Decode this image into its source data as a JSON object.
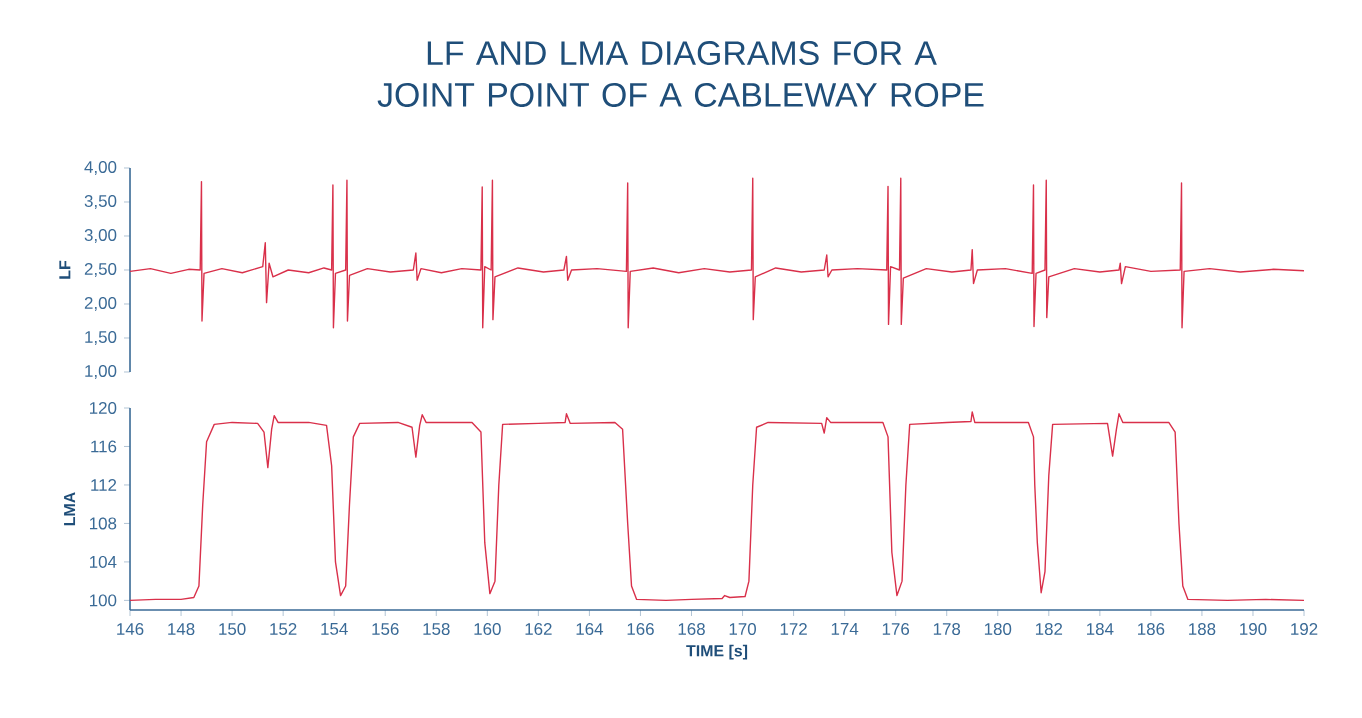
{
  "chart_data": [
    {
      "type": "line",
      "title": "LF AND LMA DIAGRAMS FOR A JOINT POINT OF A CABLEWAY ROPE",
      "ylabel": "LF",
      "color": "#d9304a",
      "tick_labels": "y",
      "xlim": [
        146,
        192
      ],
      "ylim": [
        1,
        4
      ],
      "yticks": [
        {
          "value": 1,
          "label": "1,00"
        },
        {
          "value": 1.5,
          "label": "1,50"
        },
        {
          "value": 2,
          "label": "2,00"
        },
        {
          "value": 2.5,
          "label": "2,50"
        },
        {
          "value": 3,
          "label": "3,00"
        },
        {
          "value": 3.5,
          "label": "3,50"
        },
        {
          "value": 4,
          "label": "4,00"
        }
      ],
      "x": [
        146.0,
        146.8,
        147.6,
        148.3,
        148.75,
        148.8,
        148.82,
        148.9,
        149.6,
        150.4,
        151.2,
        151.3,
        151.35,
        151.45,
        151.6,
        152.2,
        153.0,
        153.6,
        153.9,
        153.95,
        153.97,
        154.05,
        154.45,
        154.5,
        154.52,
        154.6,
        155.3,
        156.2,
        157.1,
        157.2,
        157.25,
        157.4,
        158.2,
        159.0,
        159.75,
        159.8,
        159.82,
        159.9,
        160.15,
        160.2,
        160.22,
        160.3,
        161.2,
        162.2,
        163.0,
        163.1,
        163.15,
        163.3,
        164.3,
        165.45,
        165.5,
        165.52,
        165.6,
        166.5,
        167.5,
        168.5,
        169.5,
        170.35,
        170.4,
        170.42,
        170.5,
        171.3,
        172.3,
        173.2,
        173.3,
        173.35,
        173.5,
        174.5,
        175.65,
        175.7,
        175.72,
        175.8,
        176.15,
        176.2,
        176.22,
        176.3,
        177.2,
        178.2,
        178.95,
        179.0,
        179.05,
        179.2,
        180.3,
        181.35,
        181.4,
        181.42,
        181.5,
        181.85,
        181.9,
        181.92,
        182.0,
        183.0,
        184.0,
        184.75,
        184.8,
        184.85,
        185.0,
        186.0,
        187.15,
        187.2,
        187.22,
        187.3,
        188.3,
        189.5,
        190.8,
        192.0
      ],
      "values": [
        2.48,
        2.52,
        2.45,
        2.51,
        2.5,
        3.8,
        1.75,
        2.45,
        2.52,
        2.46,
        2.55,
        2.9,
        2.02,
        2.6,
        2.4,
        2.5,
        2.46,
        2.53,
        2.5,
        3.75,
        1.65,
        2.45,
        2.5,
        3.82,
        1.75,
        2.42,
        2.52,
        2.47,
        2.5,
        2.75,
        2.35,
        2.52,
        2.46,
        2.52,
        2.5,
        3.72,
        1.65,
        2.55,
        2.5,
        3.82,
        1.77,
        2.4,
        2.53,
        2.47,
        2.5,
        2.7,
        2.35,
        2.5,
        2.52,
        2.48,
        3.78,
        1.65,
        2.48,
        2.53,
        2.46,
        2.52,
        2.47,
        2.5,
        3.85,
        1.77,
        2.4,
        2.53,
        2.47,
        2.5,
        2.72,
        2.4,
        2.5,
        2.52,
        2.5,
        3.73,
        1.7,
        2.55,
        2.5,
        3.85,
        1.7,
        2.38,
        2.52,
        2.47,
        2.5,
        2.8,
        2.3,
        2.5,
        2.52,
        2.45,
        3.75,
        1.67,
        2.45,
        2.5,
        3.82,
        1.8,
        2.4,
        2.52,
        2.47,
        2.5,
        2.6,
        2.3,
        2.55,
        2.48,
        2.5,
        3.78,
        1.65,
        2.48,
        2.52,
        2.47,
        2.51,
        2.49
      ]
    },
    {
      "type": "line",
      "ylabel": "LMA",
      "xlabel": "TIME [s]",
      "color": "#d9304a",
      "xlim": [
        146,
        192
      ],
      "ylim": [
        99,
        120
      ],
      "xticks": [
        146,
        148,
        150,
        152,
        154,
        156,
        158,
        160,
        162,
        164,
        166,
        168,
        170,
        172,
        174,
        176,
        178,
        180,
        182,
        184,
        186,
        188,
        190,
        192
      ],
      "yticks": [
        100,
        104,
        108,
        112,
        116,
        120
      ],
      "x": [
        146,
        147,
        148,
        148.5,
        148.7,
        148.85,
        149.0,
        149.3,
        150,
        151,
        151.25,
        151.4,
        151.55,
        151.65,
        151.8,
        153,
        153.7,
        153.9,
        154.05,
        154.25,
        154.45,
        154.6,
        154.75,
        155,
        156.5,
        157.05,
        157.2,
        157.35,
        157.45,
        157.6,
        159.4,
        159.75,
        159.9,
        160.1,
        160.3,
        160.45,
        160.6,
        162,
        163.05,
        163.1,
        163.25,
        165,
        165.3,
        165.5,
        165.65,
        165.85,
        167,
        168,
        169.2,
        169.3,
        169.5,
        170.1,
        170.25,
        170.4,
        170.55,
        171,
        173.1,
        173.2,
        173.3,
        173.45,
        175.5,
        175.7,
        175.85,
        176.05,
        176.25,
        176.4,
        176.55,
        178,
        178.95,
        179.0,
        179.1,
        181.2,
        181.4,
        181.45,
        181.55,
        181.7,
        181.85,
        182.0,
        182.15,
        184.3,
        184.5,
        184.65,
        184.75,
        184.9,
        186.7,
        186.95,
        187.1,
        187.25,
        187.45,
        189,
        190.5,
        192
      ],
      "values": [
        100,
        100.1,
        100.1,
        100.3,
        101.5,
        110,
        116.5,
        118.3,
        118.5,
        118.4,
        117.5,
        113.8,
        117.8,
        119.2,
        118.5,
        118.5,
        118.2,
        114,
        104,
        100.5,
        101.5,
        110,
        117,
        118.4,
        118.5,
        118,
        114.9,
        118.2,
        119.3,
        118.5,
        118.5,
        117.5,
        106,
        100.7,
        102,
        112,
        118.3,
        118.4,
        118.5,
        119.4,
        118.4,
        118.5,
        117.8,
        108,
        101.5,
        100.1,
        100,
        100.1,
        100.2,
        100.5,
        100.3,
        100.4,
        102,
        112,
        118,
        118.5,
        118.4,
        117.4,
        119,
        118.5,
        118.5,
        117,
        105,
        100.5,
        102,
        112,
        118.3,
        118.5,
        118.6,
        119.6,
        118.5,
        118.5,
        117,
        112,
        106,
        100.8,
        103,
        113,
        118.3,
        118.4,
        115,
        117.8,
        119.4,
        118.5,
        118.5,
        117.5,
        108,
        101.5,
        100.1,
        100,
        100.1,
        100
      ]
    }
  ]
}
